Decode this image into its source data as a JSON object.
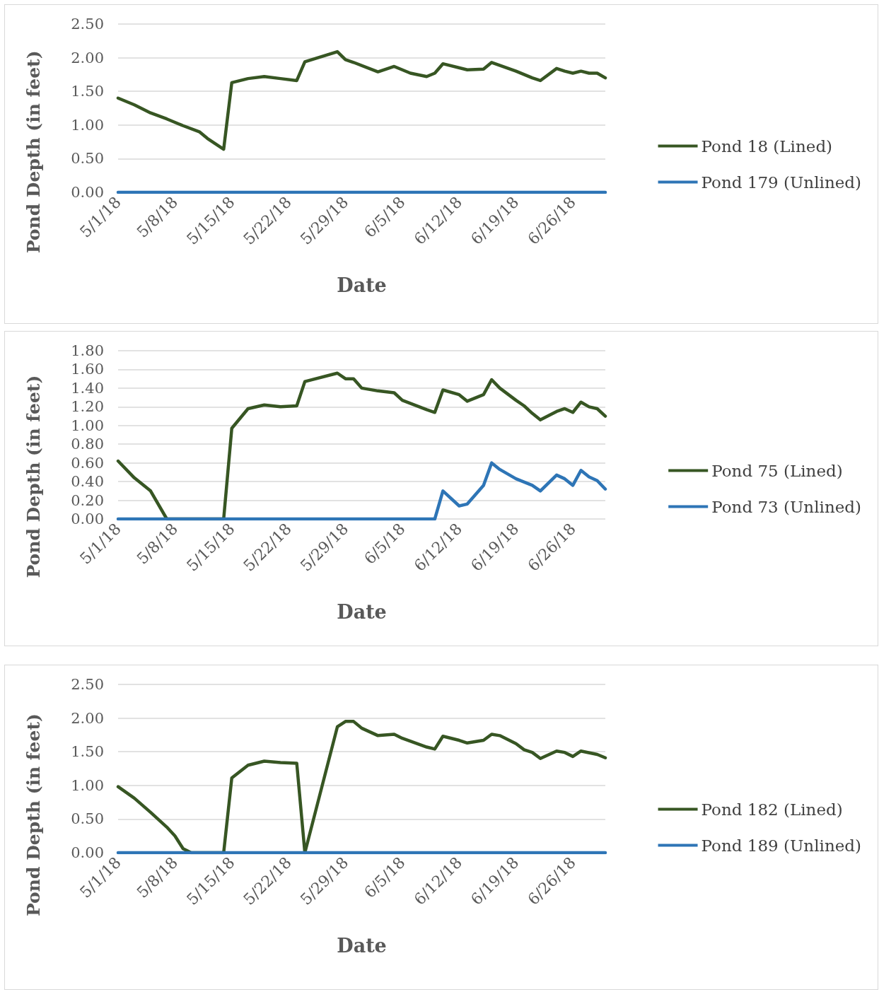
{
  "chart_data": [
    {
      "type": "line",
      "xlabel": "Date",
      "ylabel": "Pond Depth (in feet)",
      "legend": "right",
      "grid": "y",
      "line_style": "solid",
      "xlim": [
        "--05-01",
        "--06-30"
      ],
      "xticks": [
        {
          "value": "--05-01",
          "label": "5/1/18"
        },
        {
          "value": "--05-08",
          "label": "5/8/18"
        },
        {
          "value": "--05-15",
          "label": "5/15/18"
        },
        {
          "value": "--05-22",
          "label": "5/22/18"
        },
        {
          "value": "--05-29",
          "label": "5/29/18"
        },
        {
          "value": "--06-05",
          "label": "6/5/18"
        },
        {
          "value": "--06-12",
          "label": "6/12/18"
        },
        {
          "value": "--06-19",
          "label": "6/19/18"
        },
        {
          "value": "--06-26",
          "label": "6/26/18"
        }
      ],
      "ylim": [
        0,
        2.5
      ],
      "yticks": [
        {
          "value": 0,
          "label": "0.00"
        },
        {
          "value": 0.5,
          "label": "0.50"
        },
        {
          "value": 1,
          "label": "1.00"
        },
        {
          "value": 1.5,
          "label": "1.50"
        },
        {
          "value": 2,
          "label": "2.00"
        },
        {
          "value": 2.5,
          "label": "2.50"
        }
      ],
      "series": [
        {
          "name": "Pond 18 (Lined)",
          "color": "#375623",
          "x": [
            "--05-01",
            "--05-03",
            "--05-05",
            "--05-07",
            "--05-09",
            "--05-11",
            "--05-12",
            "--05-14",
            "--05-15",
            "--05-17",
            "--05-19",
            "--05-21",
            "--05-23",
            "--05-24",
            "--05-28",
            "--05-29",
            "--05-30",
            "--06-02",
            "--06-04",
            "--06-06",
            "--06-08",
            "--06-09",
            "--06-10",
            "--06-13",
            "--06-15",
            "--06-16",
            "--06-19",
            "--06-21",
            "--06-22",
            "--06-24",
            "--06-25",
            "--06-26",
            "--06-27",
            "--06-28",
            "--06-29",
            "--06-30"
          ],
          "values": [
            1.4,
            1.3,
            1.18,
            1.09,
            0.99,
            0.9,
            0.8,
            0.64,
            1.63,
            1.69,
            1.72,
            1.69,
            1.66,
            1.94,
            2.09,
            1.97,
            1.93,
            1.79,
            1.87,
            1.77,
            1.72,
            1.77,
            1.91,
            1.82,
            1.83,
            1.93,
            1.8,
            1.7,
            1.66,
            1.84,
            1.8,
            1.77,
            1.8,
            1.77,
            1.77,
            1.7
          ]
        },
        {
          "name": "Pond 179 (Unlined)",
          "color": "#2e75b6",
          "x": [
            "--05-01",
            "--06-30"
          ],
          "values": [
            0,
            0
          ]
        }
      ]
    },
    {
      "type": "line",
      "xlabel": "Date",
      "ylabel": "Pond Depth (in feet)",
      "legend": "right",
      "grid": "y",
      "line_style": "solid",
      "xlim": [
        "--05-01",
        "--06-30"
      ],
      "xticks": [
        {
          "value": "--05-01",
          "label": "5/1/18"
        },
        {
          "value": "--05-08",
          "label": "5/8/18"
        },
        {
          "value": "--05-15",
          "label": "5/15/18"
        },
        {
          "value": "--05-22",
          "label": "5/22/18"
        },
        {
          "value": "--05-29",
          "label": "5/29/18"
        },
        {
          "value": "--06-05",
          "label": "6/5/18"
        },
        {
          "value": "--06-12",
          "label": "6/12/18"
        },
        {
          "value": "--06-19",
          "label": "6/19/18"
        },
        {
          "value": "--06-26",
          "label": "6/26/18"
        }
      ],
      "ylim": [
        0,
        1.8
      ],
      "yticks": [
        {
          "value": 0,
          "label": "0.00"
        },
        {
          "value": 0.2,
          "label": "0.20"
        },
        {
          "value": 0.4,
          "label": "0.40"
        },
        {
          "value": 0.6,
          "label": "0.60"
        },
        {
          "value": 0.8,
          "label": "0.80"
        },
        {
          "value": 1,
          "label": "1.00"
        },
        {
          "value": 1.2,
          "label": "1.20"
        },
        {
          "value": 1.4,
          "label": "1.40"
        },
        {
          "value": 1.6,
          "label": "1.60"
        },
        {
          "value": 1.8,
          "label": "1.80"
        }
      ],
      "series": [
        {
          "name": "Pond 75 (Lined)",
          "color": "#375623",
          "x": [
            "--05-01",
            "--05-03",
            "--05-05",
            "--05-07",
            "--05-14",
            "--05-15",
            "--05-17",
            "--05-19",
            "--05-21",
            "--05-23",
            "--05-24",
            "--05-28",
            "--05-29",
            "--05-30",
            "--05-31",
            "--06-02",
            "--06-04",
            "--06-05",
            "--06-08",
            "--06-09",
            "--06-10",
            "--06-12",
            "--06-13",
            "--06-15",
            "--06-16",
            "--06-17",
            "--06-19",
            "--06-20",
            "--06-21",
            "--06-22",
            "--06-24",
            "--06-25",
            "--06-26",
            "--06-27",
            "--06-28",
            "--06-29",
            "--06-30"
          ],
          "values": [
            0.62,
            0.44,
            0.3,
            0,
            0,
            0.97,
            1.18,
            1.22,
            1.2,
            1.21,
            1.47,
            1.56,
            1.5,
            1.5,
            1.4,
            1.37,
            1.35,
            1.27,
            1.17,
            1.14,
            1.38,
            1.33,
            1.26,
            1.33,
            1.49,
            1.4,
            1.27,
            1.21,
            1.13,
            1.06,
            1.15,
            1.18,
            1.14,
            1.25,
            1.2,
            1.18,
            1.1
          ]
        },
        {
          "name": "Pond 73 (Unlined)",
          "color": "#2e75b6",
          "x": [
            "--05-01",
            "--06-09",
            "--06-10",
            "--06-12",
            "--06-13",
            "--06-15",
            "--06-16",
            "--06-17",
            "--06-19",
            "--06-21",
            "--06-22",
            "--06-24",
            "--06-25",
            "--06-26",
            "--06-27",
            "--06-28",
            "--06-29",
            "--06-30"
          ],
          "values": [
            0,
            0,
            0.3,
            0.14,
            0.16,
            0.36,
            0.6,
            0.53,
            0.43,
            0.36,
            0.3,
            0.47,
            0.43,
            0.36,
            0.52,
            0.45,
            0.41,
            0.32
          ]
        }
      ]
    },
    {
      "type": "line",
      "xlabel": "Date",
      "ylabel": "Pond Depth (in feet)",
      "legend": "right",
      "grid": "y",
      "line_style": "solid",
      "xlim": [
        "--05-01",
        "--06-30"
      ],
      "xticks": [
        {
          "value": "--05-01",
          "label": "5/1/18"
        },
        {
          "value": "--05-08",
          "label": "5/8/18"
        },
        {
          "value": "--05-15",
          "label": "5/15/18"
        },
        {
          "value": "--05-22",
          "label": "5/22/18"
        },
        {
          "value": "--05-29",
          "label": "5/29/18"
        },
        {
          "value": "--06-05",
          "label": "6/5/18"
        },
        {
          "value": "--06-12",
          "label": "6/12/18"
        },
        {
          "value": "--06-19",
          "label": "6/19/18"
        },
        {
          "value": "--06-26",
          "label": "6/26/18"
        }
      ],
      "ylim": [
        0,
        2.5
      ],
      "yticks": [
        {
          "value": 0,
          "label": "0.00"
        },
        {
          "value": 0.5,
          "label": "0.50"
        },
        {
          "value": 1,
          "label": "1.00"
        },
        {
          "value": 1.5,
          "label": "1.50"
        },
        {
          "value": 2,
          "label": "2.00"
        },
        {
          "value": 2.5,
          "label": "2.50"
        }
      ],
      "series": [
        {
          "name": "Pond 182 (Lined)",
          "color": "#375623",
          "x": [
            "--05-01",
            "--05-03",
            "--05-05",
            "--05-07",
            "--05-08",
            "--05-09",
            "--05-10",
            "--05-14",
            "--05-15",
            "--05-17",
            "--05-19",
            "--05-21",
            "--05-23",
            "--05-24",
            "--05-28",
            "--05-29",
            "--05-30",
            "--05-31",
            "--06-02",
            "--06-04",
            "--06-05",
            "--06-08",
            "--06-09",
            "--06-10",
            "--06-12",
            "--06-13",
            "--06-15",
            "--06-16",
            "--06-17",
            "--06-19",
            "--06-20",
            "--06-21",
            "--06-22",
            "--06-24",
            "--06-25",
            "--06-26",
            "--06-27",
            "--06-29",
            "--06-30"
          ],
          "values": [
            0.98,
            0.81,
            0.6,
            0.38,
            0.25,
            0.06,
            0,
            0,
            1.11,
            1.3,
            1.36,
            1.34,
            1.33,
            0,
            1.87,
            1.95,
            1.95,
            1.85,
            1.74,
            1.76,
            1.7,
            1.57,
            1.54,
            1.73,
            1.67,
            1.63,
            1.67,
            1.76,
            1.74,
            1.62,
            1.53,
            1.49,
            1.4,
            1.51,
            1.49,
            1.43,
            1.51,
            1.46,
            1.41
          ]
        },
        {
          "name": "Pond 189 (Unlined)",
          "color": "#2e75b6",
          "x": [
            "--05-01",
            "--06-30"
          ],
          "values": [
            0,
            0
          ]
        }
      ]
    }
  ]
}
